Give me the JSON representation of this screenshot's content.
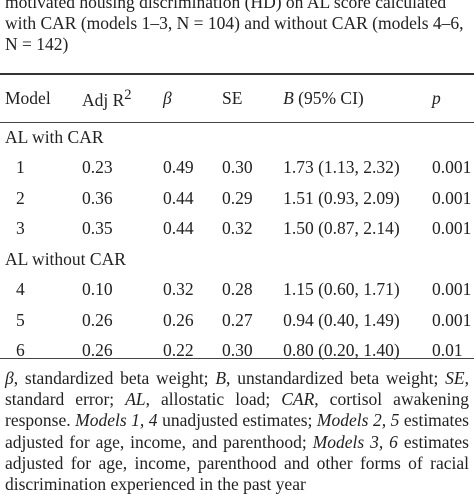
{
  "caption": {
    "line1": "motivated housing discrimination (HD) on AL score calculated",
    "line2": "with CAR (models 1–3, N = 104) and without CAR (models 4–6,",
    "line3": "N = 142)"
  },
  "headers": {
    "model": "Model",
    "adj": "Adj R",
    "adj_sup": "2",
    "beta": "β",
    "se": "SE",
    "b": "B",
    "b_ci": " (95% CI)",
    "p": "p"
  },
  "groups": [
    {
      "label": "AL with CAR",
      "rows": [
        {
          "model": "1",
          "adj": "0.23",
          "beta": "0.49",
          "se": "0.30",
          "b": "1.73 (1.13, 2.32)",
          "p": "0.001"
        },
        {
          "model": "2",
          "adj": "0.36",
          "beta": "0.44",
          "se": "0.29",
          "b": "1.51 (0.93, 2.09)",
          "p": "0.001"
        },
        {
          "model": "3",
          "adj": "0.35",
          "beta": "0.44",
          "se": "0.32",
          "b": "1.50 (0.87, 2.14)",
          "p": "0.001"
        }
      ]
    },
    {
      "label": "AL without CAR",
      "rows": [
        {
          "model": "4",
          "adj": "0.10",
          "beta": "0.32",
          "se": "0.28",
          "b": "1.15 (0.60, 1.71)",
          "p": "0.001"
        },
        {
          "model": "5",
          "adj": "0.26",
          "beta": "0.26",
          "se": "0.27",
          "b": "0.94 (0.40, 1.49)",
          "p": "0.001"
        },
        {
          "model": "6",
          "adj": "0.26",
          "beta": "0.22",
          "se": "0.30",
          "b": "0.80 (0.20, 1.40)",
          "p": "0.01"
        }
      ]
    }
  ],
  "footnote": {
    "t1": "β",
    "t2": ", standardized beta weight; ",
    "t3": "B",
    "t4": ", unstandardized beta weight; ",
    "t5": "SE",
    "t6": ", standard error; ",
    "t7": "AL",
    "t8": ", allostatic load; ",
    "t9": "CAR",
    "t10": ", cortisol awakening response. ",
    "t11": "Models 1, 4",
    "t12": " unadjusted estimates; ",
    "t13": "Models 2, 5",
    "t14": " estimates adjusted for age, income, and parenthood; ",
    "t15": "Models 3, 6",
    "t16": " estimates adjusted for age, income, parenthood and other forms of racial discrimination experienced in the past year"
  }
}
